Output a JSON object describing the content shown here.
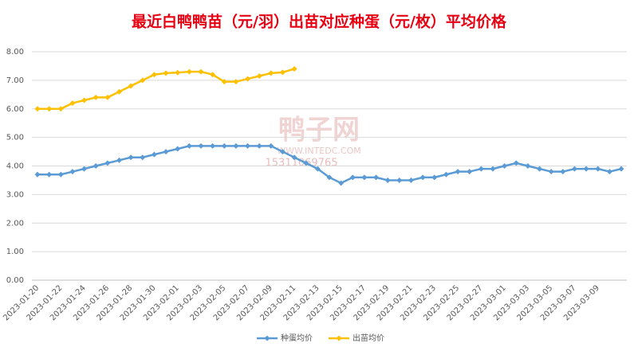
{
  "chart_data": {
    "type": "line",
    "title": "最近白鸭鸭苗（元/羽）出苗对应种蛋（元/枚）平均价格",
    "watermark": {
      "brand": "鸭子网",
      "site": "WWW.INTEDC.COM",
      "phone": "15311069765"
    },
    "categories": [
      "2023-01-20",
      null,
      "2023-01-22",
      null,
      "2023-01-24",
      null,
      "2023-01-26",
      null,
      "2023-01-28",
      null,
      "2023-01-30",
      null,
      "2023-02-01",
      null,
      "2023-02-03",
      null,
      "2023-02-05",
      null,
      "2023-02-07",
      null,
      "2023-02-09",
      null,
      "2023-02-11",
      null,
      "2023-02-13",
      null,
      "2023-02-15",
      null,
      "2023-02-17",
      null,
      "2023-02-19",
      null,
      "2023-02-21",
      null,
      "2023-02-23",
      null,
      "2023-02-25",
      null,
      "2023-02-27",
      null,
      "2023-03-01",
      null,
      "2023-03-03",
      null,
      "2023-03-05",
      null,
      "2023-03-07",
      null,
      "2023-03-09",
      null,
      null
    ],
    "series": [
      {
        "name": "种蛋均价",
        "color": "#5b9bd5",
        "values": [
          3.7,
          3.7,
          3.7,
          3.8,
          3.9,
          4.0,
          4.1,
          4.2,
          4.3,
          4.3,
          4.4,
          4.5,
          4.6,
          4.7,
          4.7,
          4.7,
          4.7,
          4.7,
          4.7,
          4.7,
          4.7,
          4.5,
          4.3,
          4.1,
          3.9,
          3.6,
          3.4,
          3.6,
          3.6,
          3.6,
          3.5,
          3.5,
          3.5,
          3.6,
          3.6,
          3.7,
          3.8,
          3.8,
          3.9,
          3.9,
          4.0,
          4.1,
          4.0,
          3.9,
          3.8,
          3.8,
          3.9,
          3.9,
          3.9,
          3.8,
          3.9
        ]
      },
      {
        "name": "出苗均价",
        "color": "#ffc000",
        "values": [
          6.0,
          6.0,
          6.0,
          6.2,
          6.3,
          6.4,
          6.4,
          6.6,
          6.8,
          7.0,
          7.2,
          7.25,
          7.27,
          7.3,
          7.3,
          7.2,
          6.95,
          6.95,
          7.05,
          7.15,
          7.25,
          7.28,
          7.4,
          null,
          null,
          null,
          null,
          null,
          null,
          null,
          null,
          null,
          null,
          null,
          null,
          null,
          null,
          null,
          null,
          null,
          null,
          null,
          null,
          null,
          null,
          null,
          null,
          null,
          null,
          null,
          null
        ]
      }
    ],
    "ylim": [
      0,
      8
    ],
    "yticks": [
      {
        "value": 0,
        "label": "0.00"
      },
      {
        "value": 1,
        "label": "1.00"
      },
      {
        "value": 2,
        "label": "2.00"
      },
      {
        "value": 3,
        "label": "3.00"
      },
      {
        "value": 4,
        "label": "4.00"
      },
      {
        "value": 5,
        "label": "5.00"
      },
      {
        "value": 6,
        "label": "6.00"
      },
      {
        "value": 7,
        "label": "7.00"
      },
      {
        "value": 8,
        "label": "8.00"
      }
    ],
    "grid": true,
    "legend": "bottom"
  }
}
